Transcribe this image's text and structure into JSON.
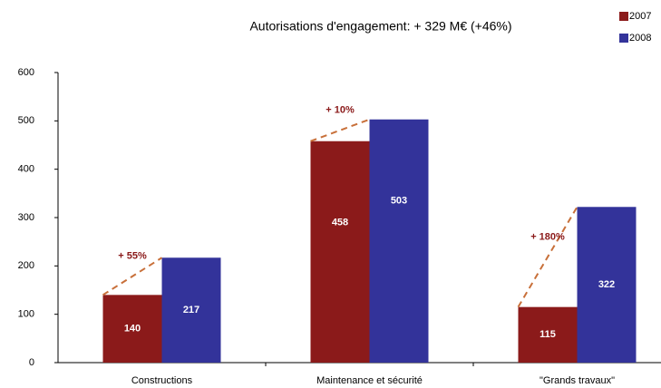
{
  "chart_data": {
    "type": "bar",
    "title": "Autorisations d'engagement: + 329 M€ (+46%)",
    "categories": [
      "Constructions",
      "Maintenance et sécurité",
      "\"Grands travaux\""
    ],
    "series": [
      {
        "name": "2007",
        "color": "#8b1a1a",
        "values": [
          140,
          458,
          115
        ]
      },
      {
        "name": "2008",
        "color": "#33339a",
        "values": [
          217,
          503,
          322
        ]
      }
    ],
    "annotations": [
      "+ 55%",
      "+ 10%",
      "+ 180%"
    ],
    "ylim": [
      0,
      600
    ],
    "yticks": [
      0,
      100,
      200,
      300,
      400,
      500,
      600
    ],
    "grid": false,
    "legend": "top-right"
  }
}
